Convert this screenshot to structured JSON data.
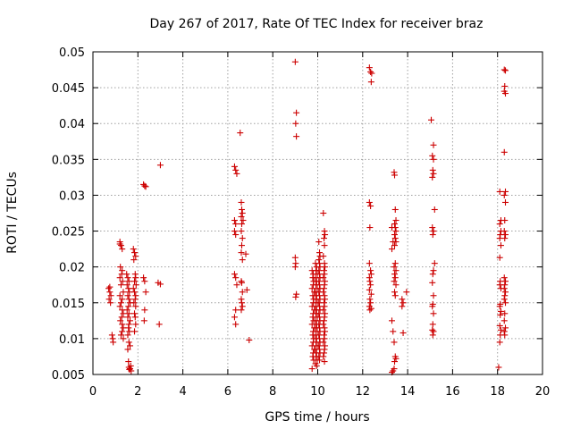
{
  "chart_data": {
    "type": "scatter",
    "title": "Day 267 of 2017, Rate Of TEC Index for receiver braz",
    "xlabel": "GPS time / hours",
    "ylabel": "ROTI / TECUs",
    "xlim": [
      0,
      20
    ],
    "ylim": [
      0.005,
      0.05
    ],
    "xticks": [
      0,
      2,
      4,
      6,
      8,
      10,
      12,
      14,
      16,
      18,
      20
    ],
    "yticks": [
      0.005,
      0.01,
      0.015,
      0.02,
      0.025,
      0.03,
      0.035,
      0.04,
      0.045,
      0.05
    ],
    "grid": true,
    "marker": "+",
    "color": "#cc0000",
    "points": [
      [
        0.7,
        0.017
      ],
      [
        0.75,
        0.0165
      ],
      [
        0.8,
        0.016
      ],
      [
        0.72,
        0.0155
      ],
      [
        0.78,
        0.015
      ],
      [
        0.85,
        0.0105
      ],
      [
        0.88,
        0.01
      ],
      [
        0.9,
        0.0095
      ],
      [
        0.75,
        0.0172
      ],
      [
        1.2,
        0.0235
      ],
      [
        1.25,
        0.023
      ],
      [
        1.3,
        0.0225
      ],
      [
        1.22,
        0.02
      ],
      [
        1.3,
        0.0195
      ],
      [
        1.28,
        0.019
      ],
      [
        1.2,
        0.0185
      ],
      [
        1.32,
        0.018
      ],
      [
        1.25,
        0.0175
      ],
      [
        1.35,
        0.0165
      ],
      [
        1.2,
        0.016
      ],
      [
        1.3,
        0.0155
      ],
      [
        1.25,
        0.015
      ],
      [
        1.2,
        0.0145
      ],
      [
        1.3,
        0.014
      ],
      [
        1.35,
        0.0135
      ],
      [
        1.28,
        0.013
      ],
      [
        1.22,
        0.0125
      ],
      [
        1.3,
        0.012
      ],
      [
        1.35,
        0.0115
      ],
      [
        1.3,
        0.011
      ],
      [
        1.25,
        0.0105
      ],
      [
        1.35,
        0.01
      ],
      [
        1.2,
        0.0232
      ],
      [
        1.5,
        0.019
      ],
      [
        1.55,
        0.0185
      ],
      [
        1.6,
        0.018
      ],
      [
        1.52,
        0.0175
      ],
      [
        1.58,
        0.017
      ],
      [
        1.62,
        0.0165
      ],
      [
        1.55,
        0.016
      ],
      [
        1.6,
        0.0155
      ],
      [
        1.65,
        0.015
      ],
      [
        1.58,
        0.0145
      ],
      [
        1.52,
        0.014
      ],
      [
        1.6,
        0.0135
      ],
      [
        1.55,
        0.013
      ],
      [
        1.65,
        0.0125
      ],
      [
        1.6,
        0.012
      ],
      [
        1.58,
        0.0115
      ],
      [
        1.62,
        0.011
      ],
      [
        1.55,
        0.0105
      ],
      [
        1.6,
        0.0095
      ],
      [
        1.65,
        0.009
      ],
      [
        1.55,
        0.0085
      ],
      [
        1.58,
        0.0068
      ],
      [
        1.6,
        0.006
      ],
      [
        1.65,
        0.0058
      ],
      [
        1.7,
        0.0055
      ],
      [
        1.62,
        0.0057
      ],
      [
        1.68,
        0.0062
      ],
      [
        1.8,
        0.0225
      ],
      [
        1.85,
        0.022
      ],
      [
        1.9,
        0.0215
      ],
      [
        1.82,
        0.021
      ],
      [
        1.88,
        0.019
      ],
      [
        1.9,
        0.0185
      ],
      [
        1.85,
        0.018
      ],
      [
        1.92,
        0.0175
      ],
      [
        1.8,
        0.017
      ],
      [
        1.85,
        0.0165
      ],
      [
        1.9,
        0.016
      ],
      [
        1.88,
        0.0155
      ],
      [
        1.82,
        0.015
      ],
      [
        1.9,
        0.0145
      ],
      [
        1.85,
        0.0135
      ],
      [
        1.88,
        0.013
      ],
      [
        1.9,
        0.012
      ],
      [
        1.85,
        0.011
      ],
      [
        2.25,
        0.0315
      ],
      [
        2.3,
        0.0313
      ],
      [
        2.35,
        0.0312
      ],
      [
        2.25,
        0.0185
      ],
      [
        2.3,
        0.018
      ],
      [
        2.35,
        0.0165
      ],
      [
        2.3,
        0.014
      ],
      [
        2.28,
        0.0125
      ],
      [
        2.9,
        0.0178
      ],
      [
        3.0,
        0.0176
      ],
      [
        2.95,
        0.012
      ],
      [
        3.0,
        0.0342
      ],
      [
        6.3,
        0.034
      ],
      [
        6.35,
        0.0335
      ],
      [
        6.4,
        0.033
      ],
      [
        6.3,
        0.0265
      ],
      [
        6.35,
        0.026
      ],
      [
        6.3,
        0.025
      ],
      [
        6.35,
        0.0245
      ],
      [
        6.3,
        0.019
      ],
      [
        6.35,
        0.0185
      ],
      [
        6.4,
        0.0175
      ],
      [
        6.35,
        0.014
      ],
      [
        6.3,
        0.013
      ],
      [
        6.35,
        0.012
      ],
      [
        6.55,
        0.0387
      ],
      [
        6.6,
        0.029
      ],
      [
        6.62,
        0.028
      ],
      [
        6.65,
        0.0275
      ],
      [
        6.6,
        0.027
      ],
      [
        6.68,
        0.0265
      ],
      [
        6.62,
        0.026
      ],
      [
        6.6,
        0.025
      ],
      [
        6.65,
        0.024
      ],
      [
        6.62,
        0.023
      ],
      [
        6.6,
        0.022
      ],
      [
        6.65,
        0.021
      ],
      [
        6.6,
        0.018
      ],
      [
        6.62,
        0.0178
      ],
      [
        6.65,
        0.0165
      ],
      [
        6.6,
        0.0155
      ],
      [
        6.62,
        0.015
      ],
      [
        6.65,
        0.0145
      ],
      [
        6.6,
        0.014
      ],
      [
        6.8,
        0.0218
      ],
      [
        6.85,
        0.0168
      ],
      [
        6.95,
        0.0098
      ],
      [
        9.0,
        0.0486
      ],
      [
        9.05,
        0.0415
      ],
      [
        9.02,
        0.04
      ],
      [
        9.05,
        0.0382
      ],
      [
        9.0,
        0.0213
      ],
      [
        9.02,
        0.0205
      ],
      [
        9.0,
        0.02
      ],
      [
        9.05,
        0.0162
      ],
      [
        9.02,
        0.0158
      ],
      [
        9.75,
        0.0195
      ],
      [
        9.8,
        0.019
      ],
      [
        9.78,
        0.0185
      ],
      [
        9.82,
        0.018
      ],
      [
        9.8,
        0.0175
      ],
      [
        9.75,
        0.017
      ],
      [
        9.85,
        0.0165
      ],
      [
        9.78,
        0.016
      ],
      [
        9.82,
        0.0155
      ],
      [
        9.8,
        0.015
      ],
      [
        9.75,
        0.0145
      ],
      [
        9.85,
        0.014
      ],
      [
        9.8,
        0.0135
      ],
      [
        9.78,
        0.013
      ],
      [
        9.82,
        0.0125
      ],
      [
        9.75,
        0.012
      ],
      [
        9.85,
        0.0115
      ],
      [
        9.8,
        0.011
      ],
      [
        9.78,
        0.0105
      ],
      [
        9.82,
        0.01
      ],
      [
        9.8,
        0.0095
      ],
      [
        9.75,
        0.009
      ],
      [
        9.85,
        0.0085
      ],
      [
        9.8,
        0.008
      ],
      [
        9.78,
        0.0075
      ],
      [
        9.82,
        0.007
      ],
      [
        9.75,
        0.0058
      ],
      [
        9.9,
        0.0205
      ],
      [
        9.95,
        0.02
      ],
      [
        9.92,
        0.0195
      ],
      [
        9.98,
        0.019
      ],
      [
        9.9,
        0.0185
      ],
      [
        9.95,
        0.018
      ],
      [
        9.92,
        0.0175
      ],
      [
        9.98,
        0.017
      ],
      [
        9.9,
        0.0165
      ],
      [
        9.95,
        0.016
      ],
      [
        9.92,
        0.0155
      ],
      [
        9.98,
        0.015
      ],
      [
        9.9,
        0.0145
      ],
      [
        9.95,
        0.014
      ],
      [
        9.92,
        0.0135
      ],
      [
        9.98,
        0.013
      ],
      [
        9.9,
        0.0125
      ],
      [
        9.95,
        0.012
      ],
      [
        9.92,
        0.0115
      ],
      [
        9.98,
        0.011
      ],
      [
        9.9,
        0.0105
      ],
      [
        9.95,
        0.01
      ],
      [
        9.92,
        0.0095
      ],
      [
        9.98,
        0.009
      ],
      [
        9.9,
        0.0085
      ],
      [
        9.95,
        0.008
      ],
      [
        9.92,
        0.0075
      ],
      [
        9.98,
        0.007
      ],
      [
        9.9,
        0.0065
      ],
      [
        9.95,
        0.0062
      ],
      [
        10.05,
        0.0235
      ],
      [
        10.08,
        0.022
      ],
      [
        10.1,
        0.0215
      ],
      [
        10.05,
        0.021
      ],
      [
        10.08,
        0.0205
      ],
      [
        10.1,
        0.02
      ],
      [
        10.05,
        0.0195
      ],
      [
        10.08,
        0.019
      ],
      [
        10.1,
        0.0185
      ],
      [
        10.05,
        0.018
      ],
      [
        10.08,
        0.0175
      ],
      [
        10.1,
        0.017
      ],
      [
        10.05,
        0.0165
      ],
      [
        10.08,
        0.016
      ],
      [
        10.1,
        0.0155
      ],
      [
        10.05,
        0.015
      ],
      [
        10.08,
        0.0145
      ],
      [
        10.1,
        0.014
      ],
      [
        10.05,
        0.0135
      ],
      [
        10.08,
        0.013
      ],
      [
        10.1,
        0.0125
      ],
      [
        10.05,
        0.012
      ],
      [
        10.08,
        0.0115
      ],
      [
        10.1,
        0.011
      ],
      [
        10.05,
        0.0105
      ],
      [
        10.08,
        0.01
      ],
      [
        10.1,
        0.0095
      ],
      [
        10.05,
        0.009
      ],
      [
        10.08,
        0.0085
      ],
      [
        10.1,
        0.008
      ],
      [
        10.05,
        0.0075
      ],
      [
        10.08,
        0.007
      ],
      [
        10.25,
        0.0275
      ],
      [
        10.3,
        0.025
      ],
      [
        10.32,
        0.0245
      ],
      [
        10.28,
        0.024
      ],
      [
        10.3,
        0.023
      ],
      [
        10.25,
        0.0215
      ],
      [
        10.3,
        0.0205
      ],
      [
        10.32,
        0.02
      ],
      [
        10.28,
        0.0195
      ],
      [
        10.3,
        0.019
      ],
      [
        10.25,
        0.0185
      ],
      [
        10.32,
        0.018
      ],
      [
        10.3,
        0.0175
      ],
      [
        10.28,
        0.017
      ],
      [
        10.25,
        0.0165
      ],
      [
        10.3,
        0.016
      ],
      [
        10.32,
        0.0155
      ],
      [
        10.28,
        0.015
      ],
      [
        10.3,
        0.0145
      ],
      [
        10.25,
        0.014
      ],
      [
        10.32,
        0.0135
      ],
      [
        10.3,
        0.013
      ],
      [
        10.28,
        0.0125
      ],
      [
        10.25,
        0.012
      ],
      [
        10.3,
        0.0115
      ],
      [
        10.32,
        0.011
      ],
      [
        10.28,
        0.0105
      ],
      [
        10.3,
        0.01
      ],
      [
        10.25,
        0.0095
      ],
      [
        10.32,
        0.009
      ],
      [
        10.3,
        0.0085
      ],
      [
        10.28,
        0.008
      ],
      [
        10.25,
        0.0075
      ],
      [
        10.3,
        0.0068
      ],
      [
        12.3,
        0.0478
      ],
      [
        12.35,
        0.0472
      ],
      [
        12.4,
        0.047
      ],
      [
        12.38,
        0.0458
      ],
      [
        12.3,
        0.029
      ],
      [
        12.35,
        0.0285
      ],
      [
        12.32,
        0.0255
      ],
      [
        12.3,
        0.0205
      ],
      [
        12.35,
        0.0195
      ],
      [
        12.38,
        0.019
      ],
      [
        12.3,
        0.0185
      ],
      [
        12.32,
        0.018
      ],
      [
        12.35,
        0.0175
      ],
      [
        12.3,
        0.0168
      ],
      [
        12.38,
        0.0162
      ],
      [
        12.32,
        0.0155
      ],
      [
        12.35,
        0.015
      ],
      [
        12.3,
        0.0145
      ],
      [
        12.38,
        0.0142
      ],
      [
        12.32,
        0.014
      ],
      [
        13.3,
        0.0255
      ],
      [
        13.35,
        0.0235
      ],
      [
        13.3,
        0.0225
      ],
      [
        13.4,
        0.0332
      ],
      [
        13.42,
        0.0328
      ],
      [
        13.45,
        0.028
      ],
      [
        13.48,
        0.0265
      ],
      [
        13.42,
        0.026
      ],
      [
        13.45,
        0.0255
      ],
      [
        13.48,
        0.025
      ],
      [
        13.42,
        0.0245
      ],
      [
        13.45,
        0.024
      ],
      [
        13.48,
        0.0235
      ],
      [
        13.42,
        0.023
      ],
      [
        13.45,
        0.0205
      ],
      [
        13.4,
        0.02
      ],
      [
        13.48,
        0.0195
      ],
      [
        13.42,
        0.019
      ],
      [
        13.45,
        0.0185
      ],
      [
        13.4,
        0.018
      ],
      [
        13.48,
        0.0175
      ],
      [
        13.42,
        0.0165
      ],
      [
        13.45,
        0.016
      ],
      [
        13.3,
        0.0125
      ],
      [
        13.35,
        0.011
      ],
      [
        13.4,
        0.0095
      ],
      [
        13.45,
        0.0075
      ],
      [
        13.48,
        0.0072
      ],
      [
        13.42,
        0.0068
      ],
      [
        13.4,
        0.0058
      ],
      [
        13.3,
        0.0053
      ],
      [
        13.35,
        0.0055
      ],
      [
        13.75,
        0.0155
      ],
      [
        13.8,
        0.015
      ],
      [
        13.75,
        0.0145
      ],
      [
        13.8,
        0.0108
      ],
      [
        13.95,
        0.0165
      ],
      [
        15.05,
        0.0405
      ],
      [
        15.15,
        0.037
      ],
      [
        15.1,
        0.0355
      ],
      [
        15.15,
        0.035
      ],
      [
        15.12,
        0.0335
      ],
      [
        15.15,
        0.033
      ],
      [
        15.1,
        0.0325
      ],
      [
        15.2,
        0.028
      ],
      [
        15.1,
        0.0255
      ],
      [
        15.15,
        0.025
      ],
      [
        15.12,
        0.0245
      ],
      [
        15.2,
        0.0205
      ],
      [
        15.15,
        0.0195
      ],
      [
        15.12,
        0.019
      ],
      [
        15.1,
        0.0178
      ],
      [
        15.15,
        0.016
      ],
      [
        15.12,
        0.0148
      ],
      [
        15.1,
        0.0145
      ],
      [
        15.15,
        0.0135
      ],
      [
        15.12,
        0.012
      ],
      [
        15.1,
        0.0112
      ],
      [
        15.15,
        0.011
      ],
      [
        15.12,
        0.0105
      ],
      [
        18.1,
        0.0305
      ],
      [
        18.15,
        0.0265
      ],
      [
        18.1,
        0.026
      ],
      [
        18.15,
        0.025
      ],
      [
        18.12,
        0.0245
      ],
      [
        18.1,
        0.024
      ],
      [
        18.15,
        0.023
      ],
      [
        18.1,
        0.0213
      ],
      [
        18.12,
        0.018
      ],
      [
        18.1,
        0.0175
      ],
      [
        18.15,
        0.017
      ],
      [
        18.12,
        0.0148
      ],
      [
        18.1,
        0.0145
      ],
      [
        18.15,
        0.0138
      ],
      [
        18.12,
        0.0133
      ],
      [
        18.1,
        0.0118
      ],
      [
        18.15,
        0.0112
      ],
      [
        18.12,
        0.0105
      ],
      [
        18.1,
        0.0095
      ],
      [
        18.05,
        0.006
      ],
      [
        18.3,
        0.0475
      ],
      [
        18.35,
        0.0474
      ],
      [
        18.32,
        0.0452
      ],
      [
        18.3,
        0.0445
      ],
      [
        18.35,
        0.0442
      ],
      [
        18.3,
        0.036
      ],
      [
        18.35,
        0.0305
      ],
      [
        18.3,
        0.03
      ],
      [
        18.35,
        0.029
      ],
      [
        18.32,
        0.0265
      ],
      [
        18.3,
        0.025
      ],
      [
        18.35,
        0.0245
      ],
      [
        18.32,
        0.024
      ],
      [
        18.3,
        0.0185
      ],
      [
        18.35,
        0.018
      ],
      [
        18.32,
        0.0175
      ],
      [
        18.3,
        0.017
      ],
      [
        18.35,
        0.0165
      ],
      [
        18.32,
        0.016
      ],
      [
        18.3,
        0.0155
      ],
      [
        18.35,
        0.015
      ],
      [
        18.32,
        0.0135
      ],
      [
        18.3,
        0.0125
      ],
      [
        18.35,
        0.0115
      ],
      [
        18.3,
        0.011
      ],
      [
        18.32,
        0.0105
      ]
    ]
  }
}
